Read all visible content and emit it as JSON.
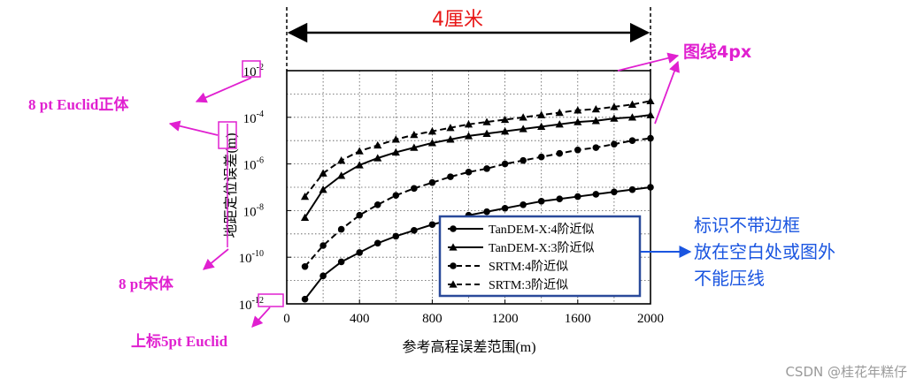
{
  "chart_data": {
    "type": "line",
    "title": "",
    "xlabel": "参考高程误差范围(m)",
    "ylabel": "地距定位误差(m)",
    "xlim": [
      0,
      2000
    ],
    "ylim_log10": [
      -12,
      -2
    ],
    "y_scale": "log",
    "grid": true,
    "x_ticks": [
      "0",
      "400",
      "800",
      "1200",
      "1600",
      "2000"
    ],
    "y_tick_base": "10",
    "y_tick_exponents": [
      "-2",
      "-4",
      "-6",
      "-8",
      "-10",
      "-12"
    ],
    "x": [
      100,
      200,
      300,
      400,
      500,
      600,
      700,
      800,
      900,
      1000,
      1100,
      1200,
      1300,
      1400,
      1500,
      1600,
      1700,
      1800,
      1900,
      2000
    ],
    "series": [
      {
        "name": "TanDEM-X:4阶近似",
        "marker": "circle",
        "line": "solid",
        "log10_values": [
          -11.8,
          -10.8,
          -10.2,
          -9.8,
          -9.4,
          -9.1,
          -8.85,
          -8.6,
          -8.4,
          -8.2,
          -8.05,
          -7.9,
          -7.75,
          -7.6,
          -7.5,
          -7.4,
          -7.3,
          -7.2,
          -7.1,
          -7.0
        ]
      },
      {
        "name": "TanDEM-X:3阶近似",
        "marker": "triangle",
        "line": "solid",
        "log10_values": [
          -8.3,
          -7.1,
          -6.5,
          -6.05,
          -5.75,
          -5.5,
          -5.3,
          -5.1,
          -4.95,
          -4.8,
          -4.7,
          -4.6,
          -4.5,
          -4.4,
          -4.3,
          -4.2,
          -4.15,
          -4.05,
          -4.0,
          -3.9
        ]
      },
      {
        "name": "SRTM:4阶近似",
        "marker": "circle",
        "line": "dashed",
        "log10_values": [
          -10.4,
          -9.5,
          -8.8,
          -8.2,
          -7.75,
          -7.35,
          -7.05,
          -6.8,
          -6.55,
          -6.35,
          -6.2,
          -6.0,
          -5.85,
          -5.7,
          -5.55,
          -5.4,
          -5.3,
          -5.15,
          -5.0,
          -4.9
        ]
      },
      {
        "name": "SRTM:3阶近似",
        "marker": "triangle",
        "line": "dashed",
        "log10_values": [
          -7.4,
          -6.4,
          -5.85,
          -5.45,
          -5.2,
          -4.95,
          -4.75,
          -4.6,
          -4.45,
          -4.3,
          -4.2,
          -4.1,
          -4.0,
          -3.9,
          -3.8,
          -3.7,
          -3.65,
          -3.55,
          -3.45,
          -3.3
        ]
      }
    ],
    "legend_position": "bottom-right"
  },
  "annotations": {
    "width_label": "4厘米",
    "line_width_label": "图线4px",
    "font_8pt_euclid": "8 pt Euclid正体",
    "font_8pt_song": "8 pt宋体",
    "superscript_label": "上标5pt Euclid",
    "legend_note_line1": "标识不带边框",
    "legend_note_line2": "放在空白处或图外",
    "legend_note_line3": "不能压线",
    "watermark": "CSDN @桂花年糕仔"
  },
  "colors": {
    "magenta": "#e020d0",
    "red": "#e81818",
    "blue": "#1a55e0",
    "legend_border": "#2a4a9a"
  }
}
